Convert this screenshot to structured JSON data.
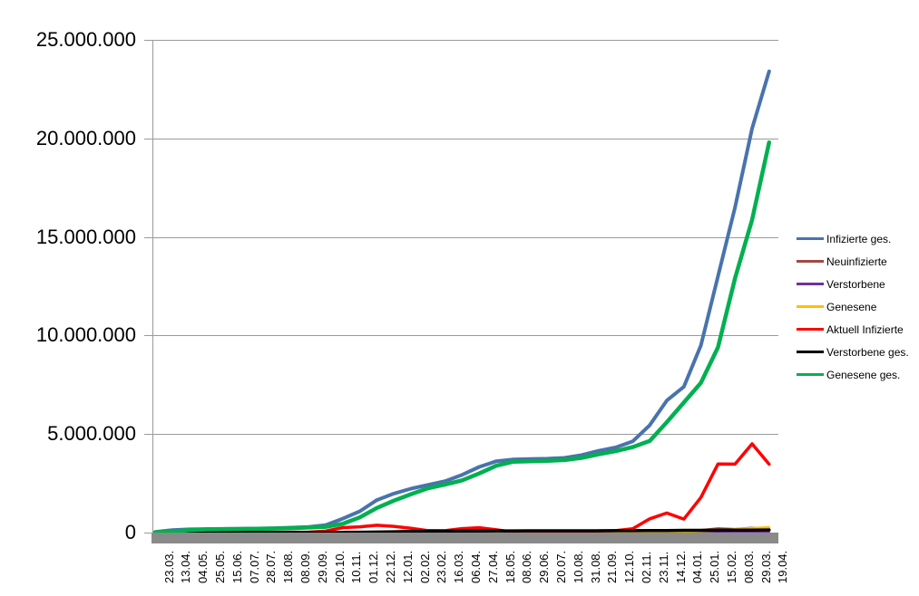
{
  "chart_data": {
    "type": "line",
    "title": "",
    "xlabel": "",
    "ylabel": "",
    "ylim": [
      0,
      25000000
    ],
    "y_tick_interval": 5000000,
    "grid": true,
    "legend_position": "right",
    "y_ticks": [
      "25.000.000",
      "20.000.000",
      "15.000.000",
      "10.000.000",
      "5.000.000",
      "0"
    ],
    "x_labels": [
      "23.03.",
      "13.04.",
      "04.05.",
      "25.05.",
      "15.06.",
      "07.07.",
      "28.07.",
      "18.08.",
      "08.09.",
      "29.09.",
      "20.10.",
      "10.11.",
      "01.12.",
      "22.12.",
      "12.01.",
      "02.02.",
      "23.02.",
      "16.03.",
      "06.04.",
      "27.04.",
      "18.05.",
      "08.06.",
      "29.06.",
      "20.07.",
      "10.08.",
      "31.08.",
      "21.09.",
      "12.10.",
      "02.11.",
      "23.11.",
      "14.12.",
      "04.01.",
      "25.01.",
      "15.02.",
      "08.03.",
      "29.03.",
      "19.04."
    ],
    "series": [
      {
        "name": "Infizierte ges.",
        "color": "#4973AC",
        "line_width": 4,
        "values": [
          30000,
          130000,
          165000,
          180000,
          187000,
          198000,
          207000,
          226000,
          254000,
          289000,
          380000,
          710000,
          1080000,
          1650000,
          1980000,
          2230000,
          2420000,
          2610000,
          2930000,
          3330000,
          3620000,
          3710000,
          3730000,
          3750000,
          3790000,
          3930000,
          4150000,
          4320000,
          4630000,
          5450000,
          6700000,
          7400000,
          9500000,
          13000000,
          16500000,
          20500000,
          23400000
        ]
      },
      {
        "name": "Neuinfizierte",
        "color": "#9E4B44",
        "line_width": 2.5,
        "values": [
          4000,
          3000,
          1200,
          500,
          350,
          400,
          600,
          1400,
          1200,
          1800,
          7500,
          18000,
          14000,
          25000,
          18000,
          8000,
          8000,
          13000,
          20000,
          22000,
          10000,
          3000,
          600,
          1500,
          4000,
          10000,
          8000,
          10000,
          22000,
          60000,
          50000,
          40000,
          130000,
          210000,
          180000,
          250000,
          180000
        ]
      },
      {
        "name": "Verstorbene",
        "color": "#7030A0",
        "line_width": 2.5,
        "values": [
          30,
          200,
          150,
          60,
          20,
          15,
          10,
          10,
          10,
          15,
          30,
          150,
          400,
          700,
          900,
          800,
          450,
          250,
          150,
          250,
          200,
          80,
          30,
          20,
          15,
          20,
          50,
          70,
          100,
          250,
          400,
          350,
          200,
          250,
          250,
          300,
          300
        ]
      },
      {
        "name": "Genesene",
        "color": "#FFC000",
        "line_width": 2.5,
        "values": [
          2000,
          4000,
          2500,
          900,
          400,
          450,
          500,
          900,
          1100,
          1400,
          3000,
          9000,
          16000,
          21000,
          20000,
          13000,
          9000,
          8000,
          12000,
          19000,
          16000,
          6000,
          1500,
          1000,
          2000,
          6000,
          8000,
          8000,
          12000,
          30000,
          45000,
          45000,
          70000,
          110000,
          170000,
          230000,
          270000
        ]
      },
      {
        "name": "Aktuell Infizierte",
        "color": "#FF0000",
        "line_width": 3.5,
        "values": [
          19700,
          66800,
          28100,
          11600,
          6200,
          6900,
          6800,
          14800,
          18700,
          23500,
          75100,
          253100,
          292900,
          373000,
          317400,
          221000,
          101700,
          96100,
          202600,
          247700,
          143600,
          20800,
          19300,
          18700,
          18200,
          47800,
          86800,
          95500,
          194000,
          700000,
          993000,
          687000,
          1783000,
          3480000,
          3476000,
          4502000,
          3468000
        ]
      },
      {
        "name": "Verstorbene ges.",
        "color": "#000000",
        "line_width": 3.5,
        "values": [
          300,
          3200,
          6900,
          8400,
          8800,
          9100,
          9200,
          9250,
          9350,
          9470,
          9900,
          11900,
          17100,
          27000,
          42600,
          59000,
          68300,
          73900,
          77400,
          82300,
          86400,
          89200,
          90700,
          91300,
          91800,
          92200,
          93200,
          94500,
          96000,
          100000,
          107000,
          113000,
          117000,
          120500,
          124000,
          128000,
          132000
        ]
      },
      {
        "name": "Genesene ges.",
        "color": "#00B050",
        "line_width": 4.5,
        "values": [
          10000,
          60000,
          130000,
          160000,
          172000,
          182000,
          191000,
          202000,
          226000,
          256000,
          295000,
          445000,
          770000,
          1250000,
          1620000,
          1950000,
          2250000,
          2440000,
          2650000,
          3000000,
          3390000,
          3600000,
          3620000,
          3640000,
          3680000,
          3790000,
          3970000,
          4130000,
          4340000,
          4650000,
          5600000,
          6600000,
          7600000,
          9400000,
          12900000,
          15870000,
          19800000
        ]
      }
    ]
  }
}
